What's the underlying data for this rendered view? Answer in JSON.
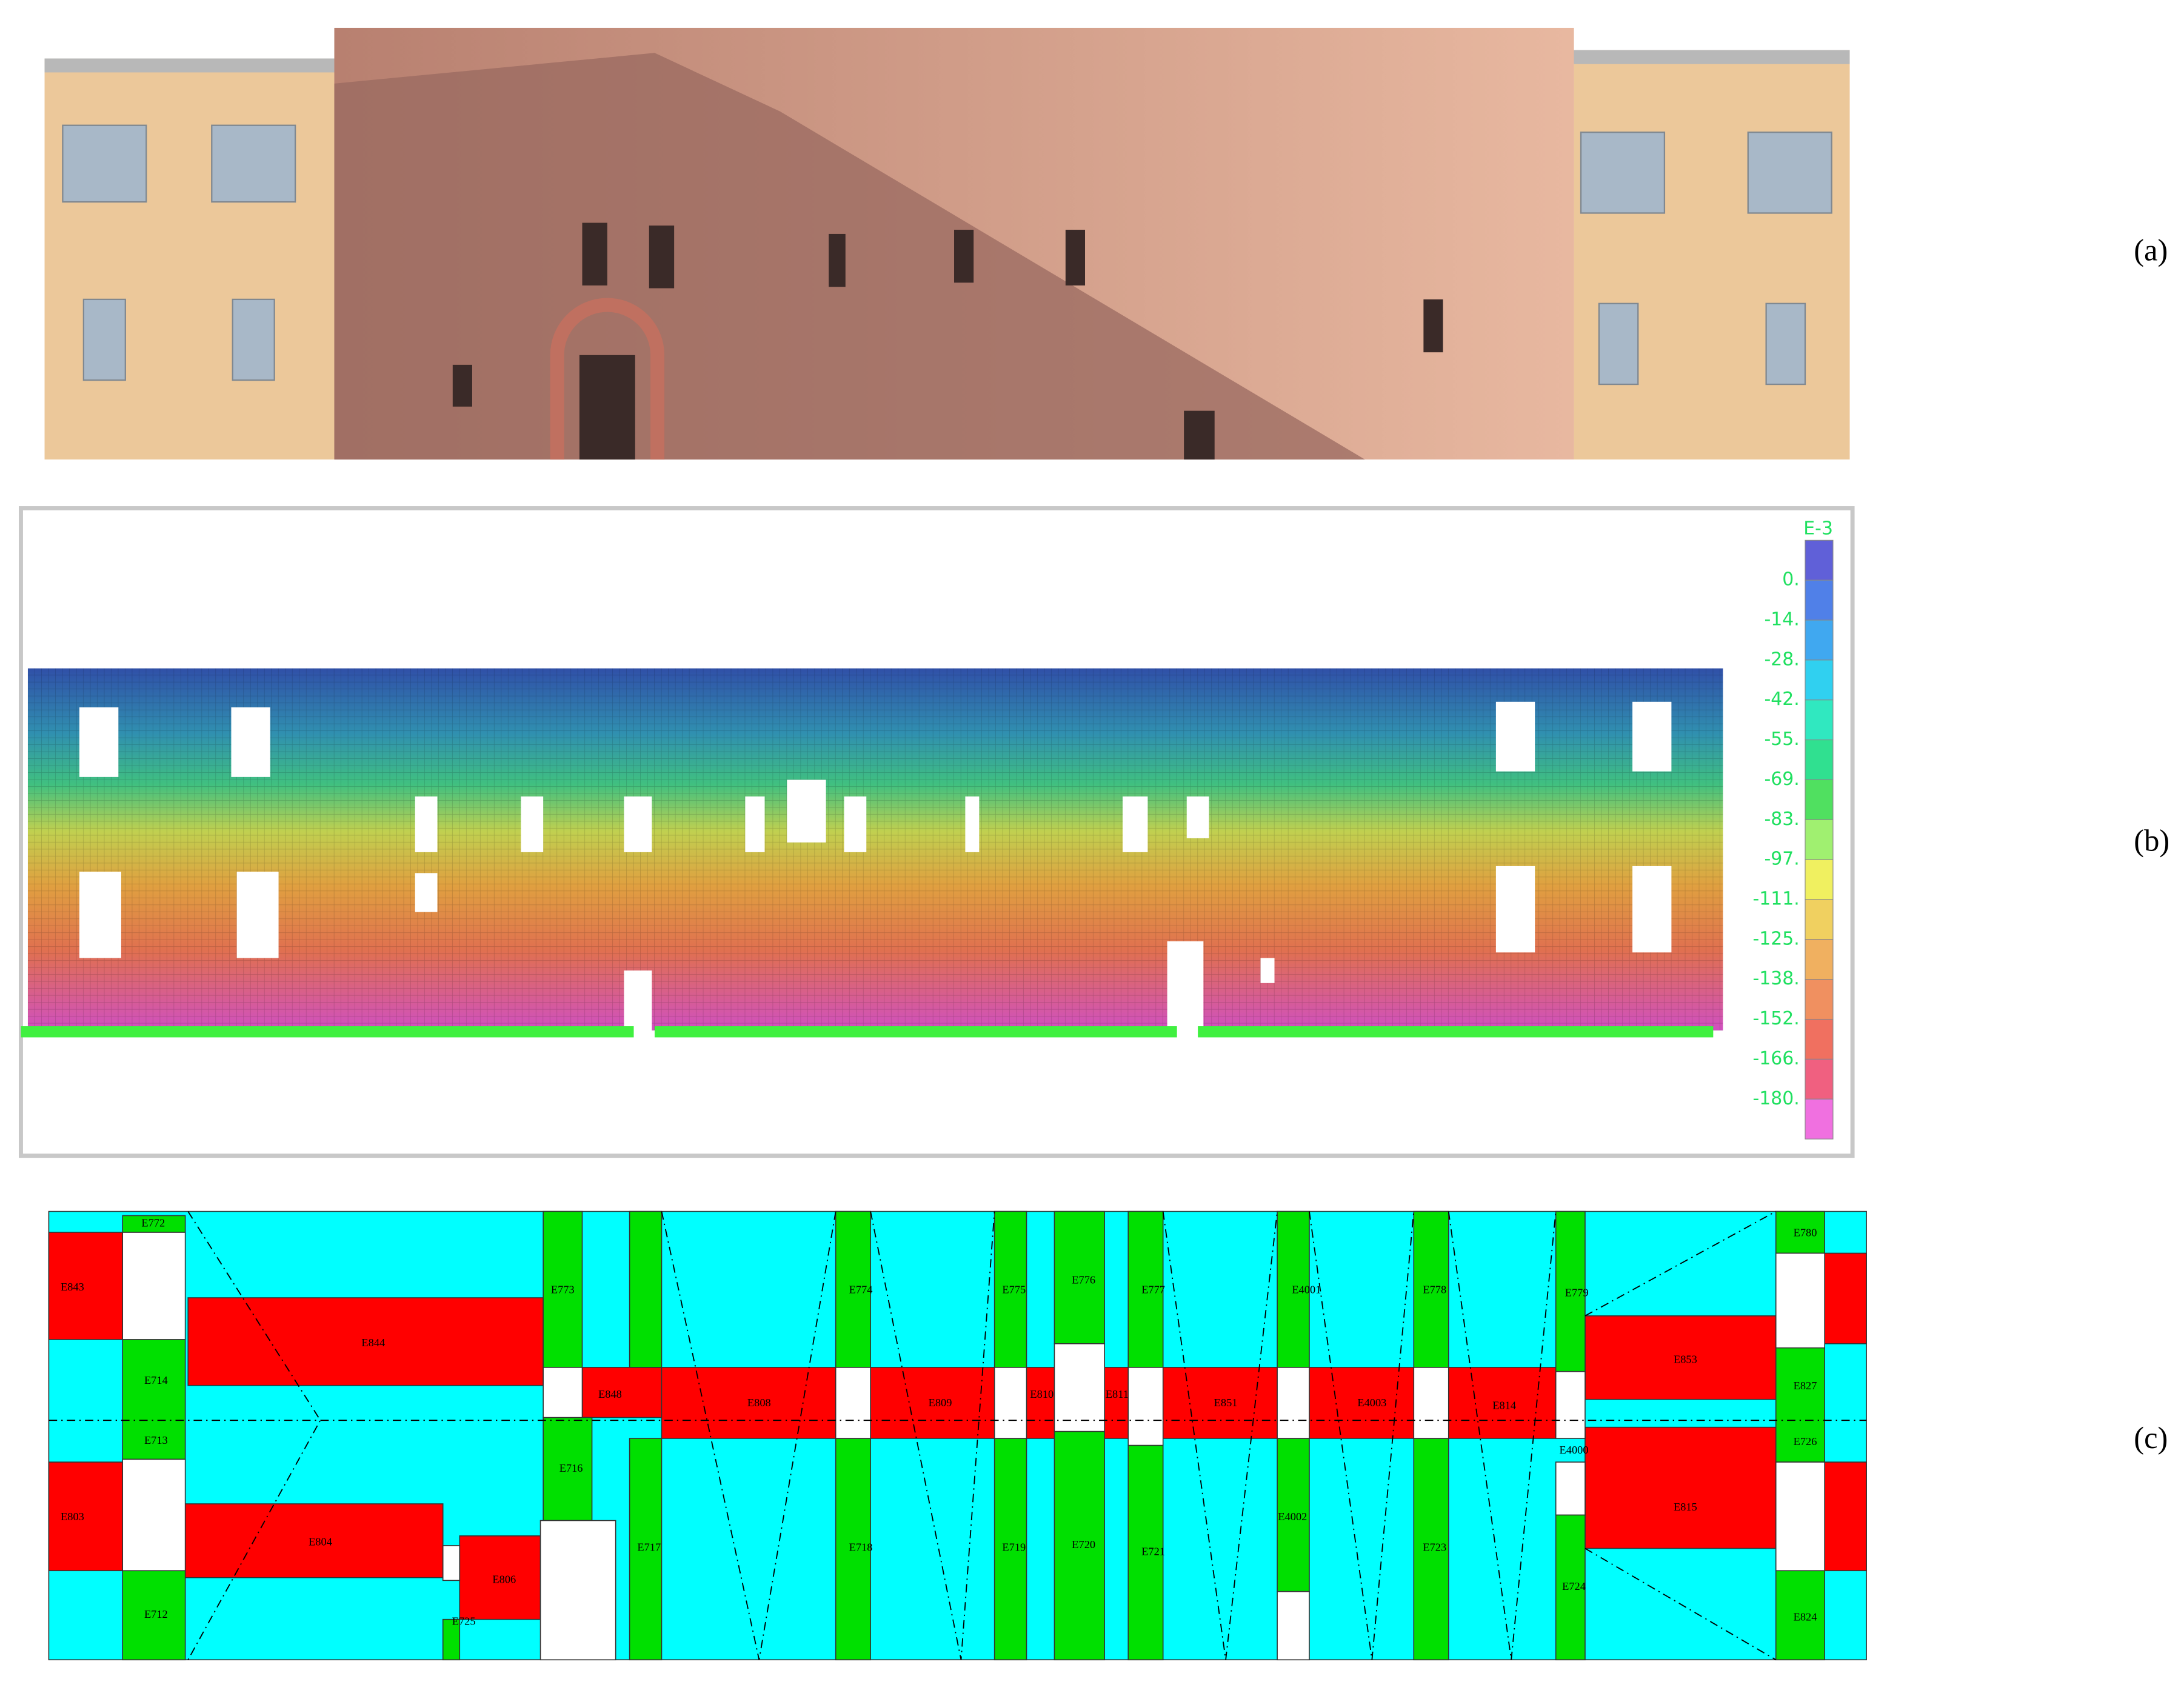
{
  "panel_a": {
    "label": "(a)"
  },
  "panel_b": {
    "label": "(b)",
    "colorbar": {
      "unit": "E-3",
      "ticks": [
        "0.",
        "-14.",
        "-28.",
        "-42.",
        "-55.",
        "-69.",
        "-83.",
        "-97.",
        "-111.",
        "-125.",
        "-138.",
        "-152.",
        "-166.",
        "-180."
      ]
    }
  },
  "panel_c": {
    "label": "(c)",
    "elements": [
      "E843",
      "E772",
      "E844",
      "E714",
      "E713",
      "E803",
      "E804",
      "E712",
      "E806",
      "E725",
      "E773",
      "E716",
      "E848",
      "E808",
      "E774",
      "E809",
      "E775",
      "E776",
      "E810",
      "E811",
      "E777",
      "E851",
      "E4001",
      "E4003",
      "E778",
      "E814",
      "E779",
      "E853",
      "E780",
      "E827",
      "E726",
      "E4000",
      "E815",
      "E824",
      "E717",
      "E718",
      "E719",
      "E720",
      "E721",
      "E4002",
      "E723",
      "E724"
    ]
  }
}
